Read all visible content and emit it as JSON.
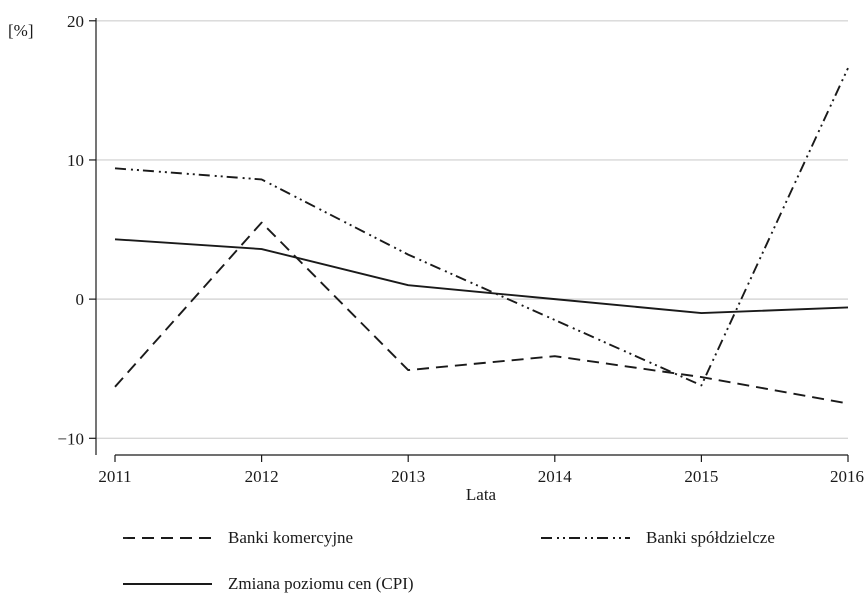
{
  "chart_data": {
    "type": "line",
    "ylabel": "[%]",
    "xlabel": "Lata",
    "x": [
      2011,
      2012,
      2013,
      2014,
      2015,
      2016
    ],
    "xticks": [
      "2011",
      "2012",
      "2013",
      "2014",
      "2015",
      "2016"
    ],
    "yticks": [
      -10,
      0,
      10,
      20
    ],
    "ylim": [
      -11.2,
      20.2
    ],
    "xlim": [
      2011,
      2016
    ],
    "grid": "horizontal",
    "legend_position": "bottom",
    "series": [
      {
        "name": "Banki komercyjne",
        "style": "dashed",
        "color": "#1a1a1a",
        "values": [
          -6.3,
          5.5,
          -5.1,
          -4.1,
          -5.6,
          -7.5
        ]
      },
      {
        "name": "Banki spółdzielcze",
        "style": "dash-dot-dot",
        "color": "#1a1a1a",
        "values": [
          9.4,
          8.6,
          3.2,
          -1.5,
          -6.2,
          16.6
        ]
      },
      {
        "name": "Zmiana poziomu cen (CPI)",
        "style": "solid",
        "color": "#1a1a1a",
        "values": [
          4.3,
          3.6,
          1.0,
          0.0,
          -1.0,
          -0.6
        ]
      }
    ]
  }
}
